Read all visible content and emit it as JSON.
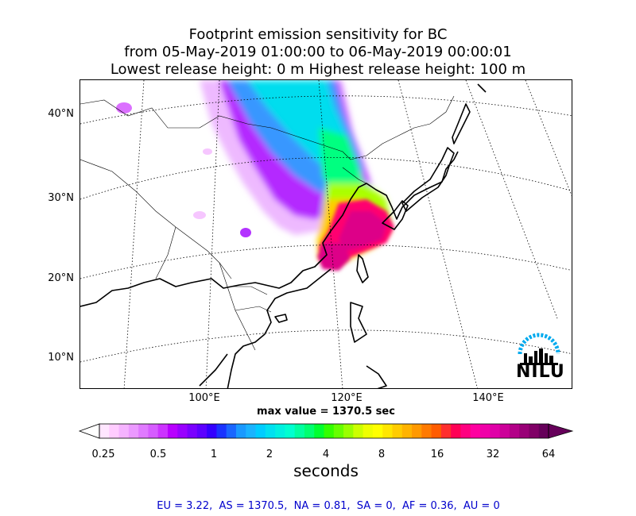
{
  "title": {
    "line1": "Footprint emission sensitivity for BC",
    "line2": "from 05-May-2019 01:00:00 to 06-May-2019 00:00:01",
    "line3": "Lowest release height: 0 m      Highest release height: 100 m"
  },
  "map": {
    "lat_labels": [
      "40°N",
      "30°N",
      "20°N",
      "10°N"
    ],
    "lon_labels": [
      "100°E",
      "120°E",
      "140°E"
    ],
    "logo_text": "NILU",
    "max_value_text": "max value = 1370.5 sec"
  },
  "colorbar": {
    "ticks": [
      "0.25",
      "0.5",
      "1",
      "2",
      "4",
      "8",
      "16",
      "32",
      "64"
    ],
    "label": "seconds",
    "colors": [
      "#ffe6ff",
      "#ffccff",
      "#f5b3ff",
      "#eb99ff",
      "#e07aff",
      "#d65cff",
      "#cc33ff",
      "#b800ff",
      "#9900ff",
      "#7a00ff",
      "#5c00ff",
      "#3300ff",
      "#1a33ff",
      "#1a66ff",
      "#1a99ff",
      "#1ab3ff",
      "#00ccff",
      "#00e0f0",
      "#00f0e0",
      "#00ffd0",
      "#00ffa0",
      "#00ff70",
      "#00ff30",
      "#33ff00",
      "#66ff00",
      "#99ff00",
      "#ccff00",
      "#eeff00",
      "#ffff00",
      "#ffe600",
      "#ffcc00",
      "#ffb300",
      "#ff9900",
      "#ff7a00",
      "#ff5c00",
      "#ff2e2e",
      "#ff0055",
      "#ff0080",
      "#ff00a0",
      "#f000a8",
      "#e000a8",
      "#cc0099",
      "#b30088",
      "#990077",
      "#800066",
      "#66005a"
    ]
  },
  "footer": "EU = 3.22,  AS = 1370.5,  NA = 0.81,  SA = 0,  AF = 0.36,  AU = 0"
}
